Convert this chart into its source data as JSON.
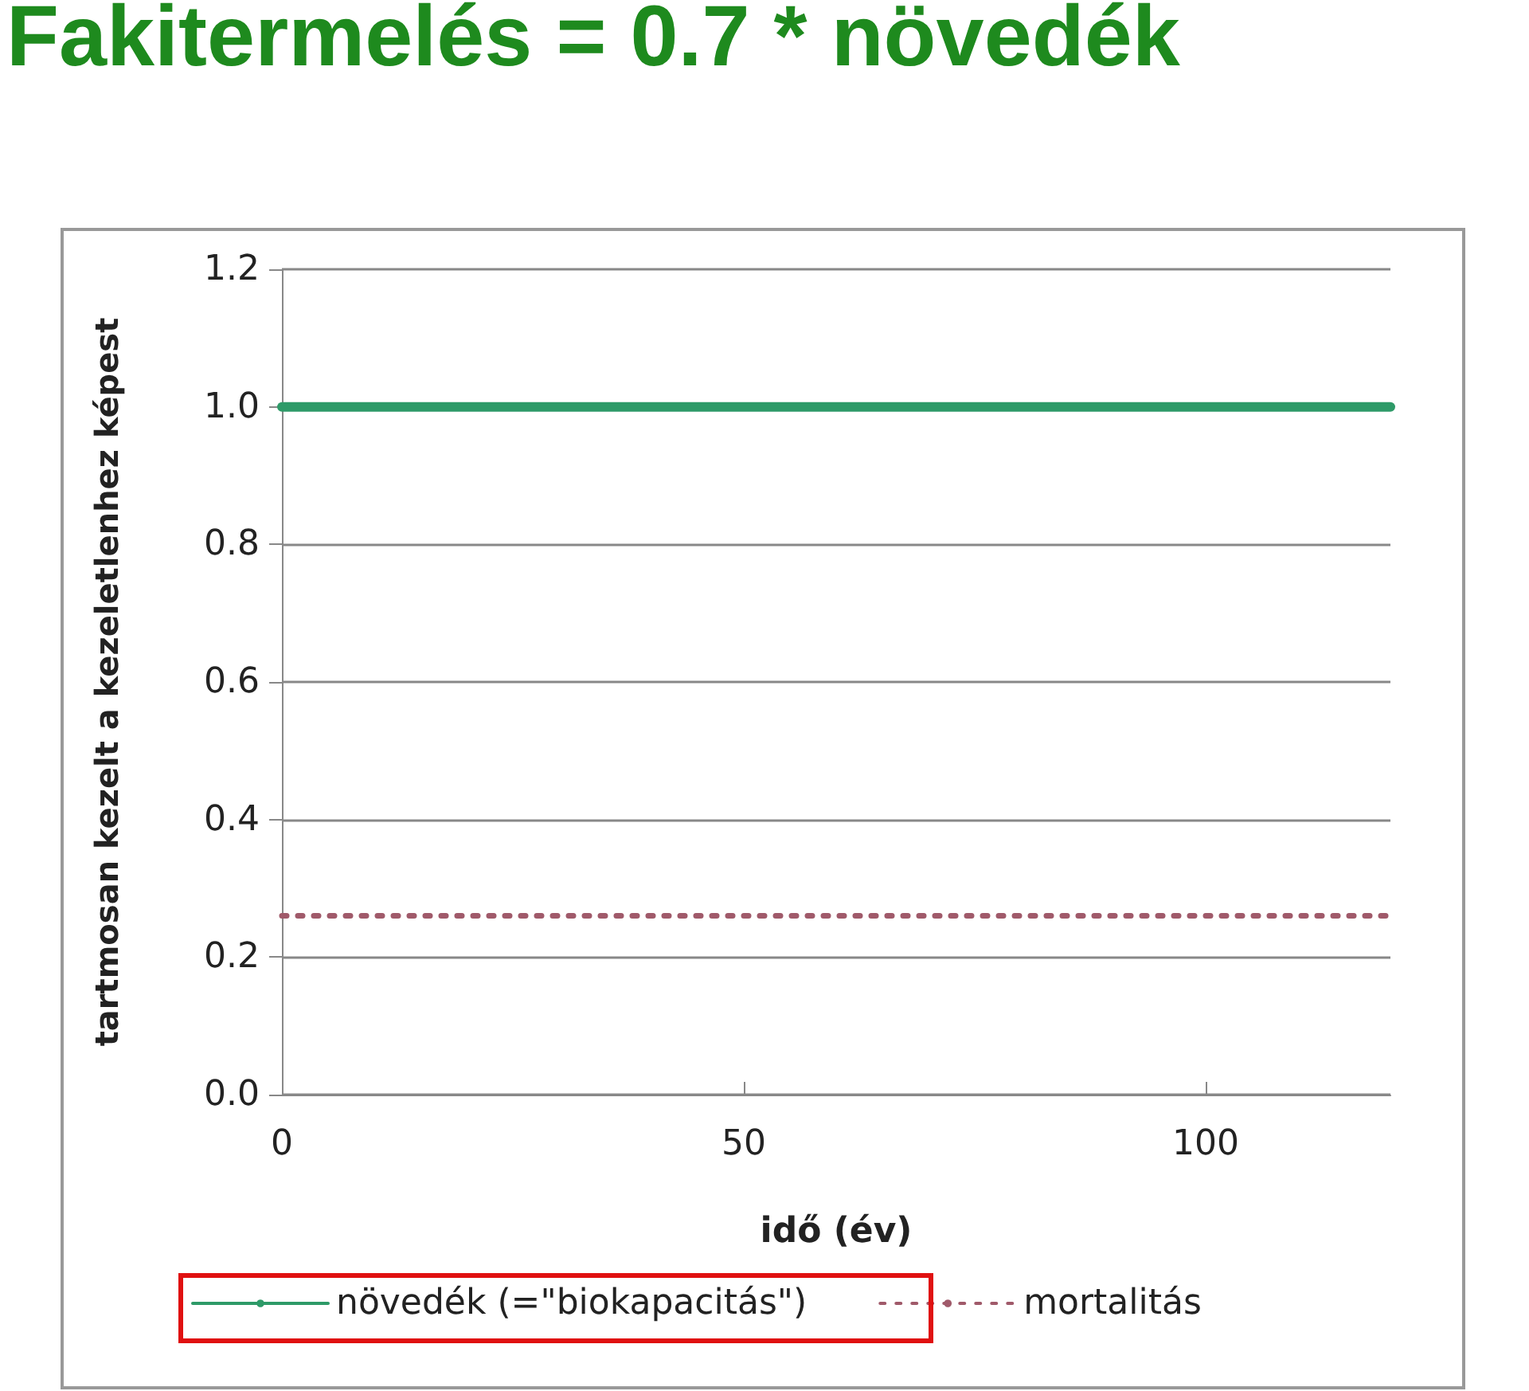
{
  "chart_data": {
    "type": "line",
    "title": "Fakitermelés = 0.7 * növedék",
    "xlabel": "idő (év)",
    "ylabel": "tartmosan kezelt a kezeletlenhez képest",
    "x": [
      0,
      120
    ],
    "series": [
      {
        "name": "növedék (=\"biokapacitás\")",
        "color": "#2e9a68",
        "values": [
          1.0,
          1.0
        ],
        "line_style": "solid"
      },
      {
        "name": "mortalitás",
        "color": "#a05a6a",
        "values": [
          0.26,
          0.26
        ],
        "line_style": "dotted"
      }
    ],
    "xlim": [
      0,
      120
    ],
    "xticks": [
      0,
      50,
      100
    ],
    "ylim": [
      0,
      1.2
    ],
    "yticks": [
      {
        "value": 0,
        "label": "0.0"
      },
      0.2,
      0.4,
      0.6,
      0.8,
      {
        "value": 1,
        "label": "1.0"
      },
      1.2
    ],
    "grid": "y",
    "legend": "bottom",
    "marker": "none"
  }
}
